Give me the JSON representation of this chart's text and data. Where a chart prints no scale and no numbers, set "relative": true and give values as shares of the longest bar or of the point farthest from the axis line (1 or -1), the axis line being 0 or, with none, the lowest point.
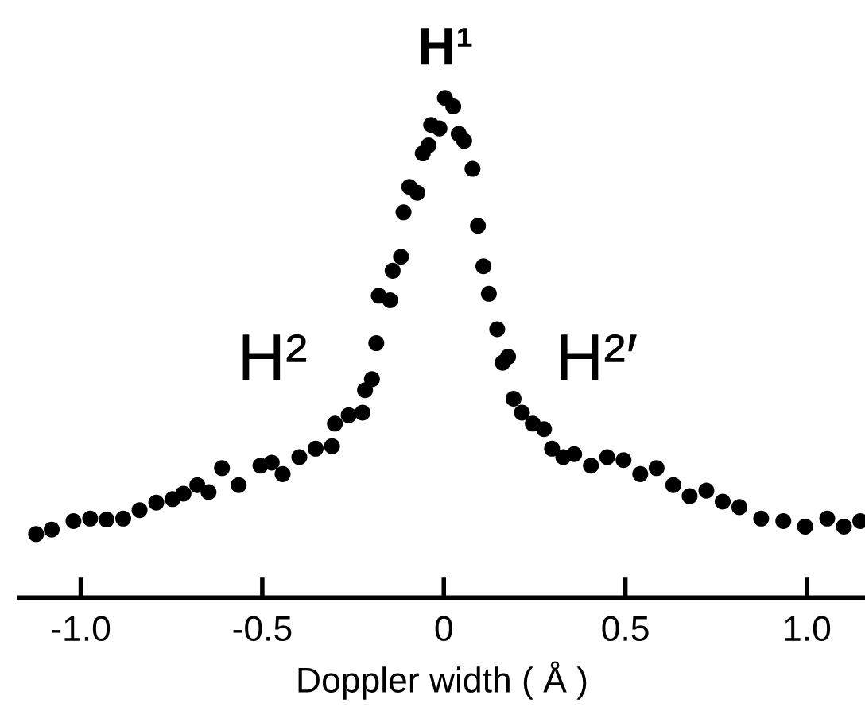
{
  "chart_data": {
    "type": "scatter",
    "xlabel": "Doppler width ( Å )",
    "relative": true,
    "color": "#000000",
    "marker": "circle",
    "xlim": [
      -1.17,
      1.16
    ],
    "xticks": [
      {
        "value": -1.0,
        "label": "-1.0"
      },
      {
        "value": -0.5,
        "label": "-0.5"
      },
      {
        "value": 0,
        "label": "0"
      },
      {
        "value": 0.5,
        "label": "0.5"
      },
      {
        "value": 1.0,
        "label": "1.0"
      }
    ],
    "x": [
      -1.123,
      -1.08,
      -1.02,
      -0.974,
      -0.929,
      -0.883,
      -0.838,
      -0.792,
      -0.747,
      -0.717,
      -0.679,
      -0.648,
      -0.611,
      -0.565,
      -0.505,
      -0.474,
      -0.444,
      -0.398,
      -0.353,
      -0.308,
      -0.3,
      -0.262,
      -0.224,
      -0.217,
      -0.198,
      -0.186,
      -0.179,
      -0.148,
      -0.141,
      -0.118,
      -0.111,
      -0.095,
      -0.073,
      -0.058,
      -0.042,
      -0.035,
      -0.012,
      0.003,
      0.026,
      0.041,
      0.056,
      0.079,
      0.094,
      0.109,
      0.124,
      0.147,
      0.162,
      0.177,
      0.192,
      0.215,
      0.245,
      0.276,
      0.298,
      0.329,
      0.359,
      0.405,
      0.45,
      0.495,
      0.541,
      0.586,
      0.632,
      0.677,
      0.723,
      0.768,
      0.814,
      0.874,
      0.935,
      0.995,
      1.056,
      1.102,
      1.147
    ],
    "values": [
      0.127,
      0.136,
      0.153,
      0.158,
      0.156,
      0.158,
      0.175,
      0.19,
      0.197,
      0.208,
      0.225,
      0.211,
      0.259,
      0.225,
      0.264,
      0.27,
      0.247,
      0.281,
      0.298,
      0.303,
      0.348,
      0.365,
      0.37,
      0.415,
      0.437,
      0.509,
      0.604,
      0.595,
      0.654,
      0.682,
      0.771,
      0.822,
      0.81,
      0.889,
      0.905,
      0.946,
      0.939,
      1.0,
      0.983,
      0.928,
      0.914,
      0.858,
      0.744,
      0.663,
      0.608,
      0.537,
      0.47,
      0.482,
      0.398,
      0.37,
      0.348,
      0.337,
      0.298,
      0.281,
      0.287,
      0.264,
      0.281,
      0.275,
      0.247,
      0.259,
      0.225,
      0.203,
      0.214,
      0.192,
      0.181,
      0.158,
      0.153,
      0.142,
      0.158,
      0.142,
      0.153
    ],
    "annotations": [
      "H¹",
      "H²",
      "H²′"
    ]
  }
}
